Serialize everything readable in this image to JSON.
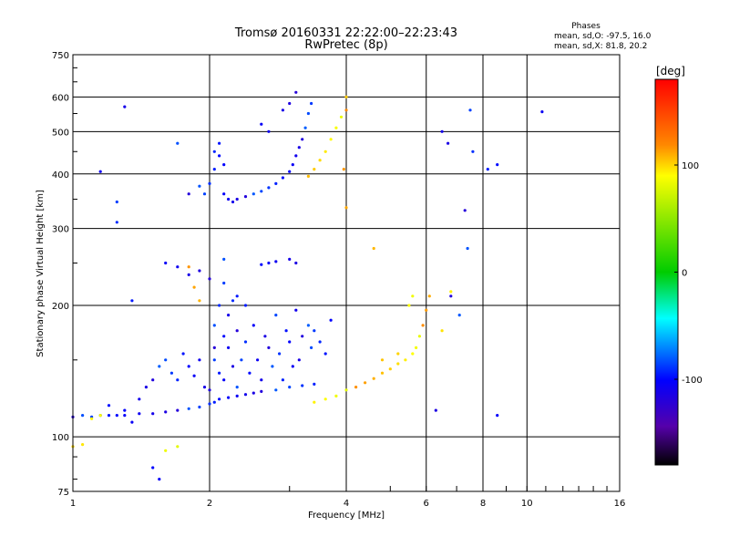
{
  "chart_data": {
    "type": "scatter",
    "title": "Tromsø 20160331 22:22:00–22:23:43",
    "subtitle": "RwPretec (8p)",
    "xlabel": "Frequency [MHz]",
    "ylabel": "Stationary phase Virtual Height [km]",
    "x_scale": "log",
    "y_scale": "log",
    "xlim": [
      1,
      16
    ],
    "ylim": [
      75,
      750
    ],
    "x_ticks": [
      1,
      2,
      4,
      6,
      8,
      10,
      16
    ],
    "x_tick_labels": [
      "1",
      "2",
      "4",
      "6",
      "8",
      "10",
      "16"
    ],
    "y_ticks": [
      75,
      100,
      200,
      300,
      400,
      500,
      600,
      750
    ],
    "y_tick_labels": [
      "75",
      "100",
      "200",
      "300",
      "400",
      "500",
      "600",
      "750"
    ],
    "grid": true,
    "info_title": "Phases",
    "info_lines": [
      "mean, sd,O: -97.5, 16.0",
      "mean, sd,X:  81.8, 20.2"
    ],
    "colorbar": {
      "label": "[deg]",
      "range": [
        -180,
        180
      ],
      "ticks": [
        100,
        0,
        -100
      ],
      "tick_labels": [
        "100",
        "0",
        "-100"
      ]
    },
    "series": [
      {
        "color_value": -100,
        "note": "O-mode echoes",
        "points": [
          [
            1.0,
            111
          ],
          [
            1.05,
            112
          ],
          [
            1.1,
            111
          ],
          [
            1.15,
            112
          ],
          [
            1.2,
            112
          ],
          [
            1.25,
            112
          ],
          [
            1.3,
            112
          ],
          [
            1.4,
            113
          ],
          [
            1.5,
            113
          ],
          [
            1.6,
            114
          ],
          [
            1.7,
            115
          ],
          [
            1.8,
            116
          ],
          [
            1.9,
            117
          ],
          [
            2.0,
            119
          ],
          [
            2.05,
            120
          ],
          [
            2.1,
            122
          ],
          [
            2.2,
            123
          ],
          [
            2.3,
            124
          ],
          [
            2.4,
            125
          ],
          [
            2.5,
            126
          ],
          [
            2.6,
            127
          ],
          [
            2.8,
            128
          ],
          [
            3.0,
            130
          ],
          [
            3.2,
            131
          ],
          [
            3.4,
            132
          ],
          [
            1.2,
            118
          ],
          [
            1.3,
            115
          ],
          [
            1.35,
            108
          ],
          [
            1.4,
            122
          ],
          [
            1.45,
            130
          ],
          [
            1.5,
            135
          ],
          [
            1.55,
            145
          ],
          [
            1.6,
            150
          ],
          [
            1.65,
            140
          ],
          [
            1.7,
            135
          ],
          [
            1.75,
            155
          ],
          [
            1.8,
            145
          ],
          [
            1.85,
            138
          ],
          [
            1.9,
            150
          ],
          [
            1.95,
            130
          ],
          [
            2.0,
            128
          ],
          [
            2.05,
            160
          ],
          [
            2.05,
            180
          ],
          [
            2.05,
            150
          ],
          [
            2.1,
            200
          ],
          [
            2.1,
            140
          ],
          [
            2.15,
            170
          ],
          [
            2.15,
            135
          ],
          [
            2.2,
            160
          ],
          [
            2.2,
            190
          ],
          [
            2.25,
            145
          ],
          [
            2.3,
            175
          ],
          [
            2.3,
            130
          ],
          [
            2.35,
            150
          ],
          [
            2.4,
            165
          ],
          [
            2.4,
            200
          ],
          [
            2.45,
            140
          ],
          [
            2.5,
            180
          ],
          [
            2.55,
            150
          ],
          [
            2.6,
            135
          ],
          [
            2.65,
            170
          ],
          [
            2.7,
            160
          ],
          [
            2.75,
            145
          ],
          [
            2.8,
            190
          ],
          [
            2.85,
            155
          ],
          [
            2.9,
            135
          ],
          [
            2.95,
            175
          ],
          [
            3.0,
            165
          ],
          [
            3.05,
            145
          ],
          [
            3.1,
            195
          ],
          [
            3.15,
            150
          ],
          [
            3.2,
            170
          ],
          [
            3.3,
            180
          ],
          [
            3.35,
            160
          ],
          [
            3.4,
            175
          ],
          [
            3.5,
            165
          ],
          [
            3.6,
            155
          ],
          [
            3.7,
            185
          ],
          [
            1.6,
            250
          ],
          [
            1.7,
            245
          ],
          [
            1.8,
            235
          ],
          [
            1.9,
            240
          ],
          [
            2.0,
            230
          ],
          [
            2.15,
            255
          ],
          [
            2.15,
            225
          ],
          [
            2.25,
            205
          ],
          [
            2.3,
            210
          ],
          [
            2.6,
            248
          ],
          [
            2.7,
            250
          ],
          [
            2.8,
            252
          ],
          [
            3.0,
            255
          ],
          [
            3.1,
            250
          ],
          [
            1.8,
            360
          ],
          [
            1.9,
            375
          ],
          [
            1.95,
            360
          ],
          [
            2.0,
            380
          ],
          [
            2.05,
            410
          ],
          [
            2.1,
            440
          ],
          [
            2.15,
            360
          ],
          [
            2.2,
            350
          ],
          [
            2.25,
            345
          ],
          [
            2.3,
            350
          ],
          [
            2.4,
            355
          ],
          [
            2.5,
            360
          ],
          [
            2.6,
            365
          ],
          [
            2.7,
            372
          ],
          [
            2.8,
            380
          ],
          [
            2.9,
            392
          ],
          [
            3.0,
            405
          ],
          [
            3.05,
            420
          ],
          [
            3.1,
            440
          ],
          [
            3.15,
            460
          ],
          [
            3.2,
            480
          ],
          [
            3.25,
            510
          ],
          [
            3.3,
            550
          ],
          [
            3.35,
            580
          ],
          [
            2.05,
            450
          ],
          [
            2.1,
            470
          ],
          [
            2.15,
            420
          ],
          [
            2.6,
            520
          ],
          [
            2.7,
            500
          ],
          [
            2.9,
            560
          ],
          [
            3.0,
            580
          ],
          [
            3.1,
            615
          ],
          [
            1.7,
            470
          ],
          [
            1.25,
            345
          ],
          [
            1.25,
            310
          ],
          [
            1.35,
            205
          ],
          [
            1.5,
            85
          ],
          [
            1.55,
            80
          ],
          [
            1.15,
            405
          ],
          [
            1.3,
            570
          ],
          [
            6.3,
            115
          ],
          [
            7.3,
            330
          ],
          [
            7.4,
            270
          ],
          [
            7.5,
            560
          ],
          [
            7.6,
            450
          ],
          [
            8.2,
            410
          ],
          [
            8.6,
            420
          ],
          [
            8.6,
            112
          ],
          [
            10.8,
            555
          ],
          [
            6.5,
            500
          ],
          [
            6.7,
            470
          ],
          [
            6.8,
            210
          ],
          [
            7.1,
            190
          ]
        ]
      },
      {
        "color_value": 100,
        "note": "X-mode echoes",
        "points": [
          [
            3.4,
            120
          ],
          [
            3.6,
            122
          ],
          [
            3.8,
            124
          ],
          [
            4.0,
            128
          ],
          [
            4.2,
            130
          ],
          [
            4.4,
            133
          ],
          [
            4.6,
            136
          ],
          [
            4.8,
            140
          ],
          [
            5.0,
            143
          ],
          [
            5.2,
            147
          ],
          [
            5.4,
            150
          ],
          [
            5.6,
            155
          ],
          [
            5.7,
            160
          ],
          [
            5.8,
            170
          ],
          [
            5.9,
            180
          ],
          [
            6.0,
            195
          ],
          [
            6.1,
            210
          ],
          [
            3.3,
            395
          ],
          [
            3.4,
            410
          ],
          [
            3.5,
            430
          ],
          [
            3.6,
            450
          ],
          [
            3.7,
            480
          ],
          [
            3.8,
            510
          ],
          [
            3.9,
            540
          ],
          [
            4.0,
            560
          ],
          [
            3.95,
            410
          ],
          [
            4.0,
            335
          ],
          [
            4.6,
            270
          ],
          [
            4.0,
            600
          ],
          [
            1.0,
            95
          ],
          [
            1.05,
            96
          ],
          [
            1.1,
            110
          ],
          [
            1.15,
            112
          ],
          [
            1.6,
            93
          ],
          [
            1.7,
            95
          ],
          [
            1.8,
            245
          ],
          [
            1.85,
            220
          ],
          [
            1.9,
            205
          ],
          [
            4.8,
            150
          ],
          [
            5.2,
            155
          ],
          [
            6.5,
            175
          ],
          [
            6.8,
            215
          ],
          [
            5.5,
            200
          ],
          [
            5.6,
            210
          ]
        ]
      }
    ]
  }
}
